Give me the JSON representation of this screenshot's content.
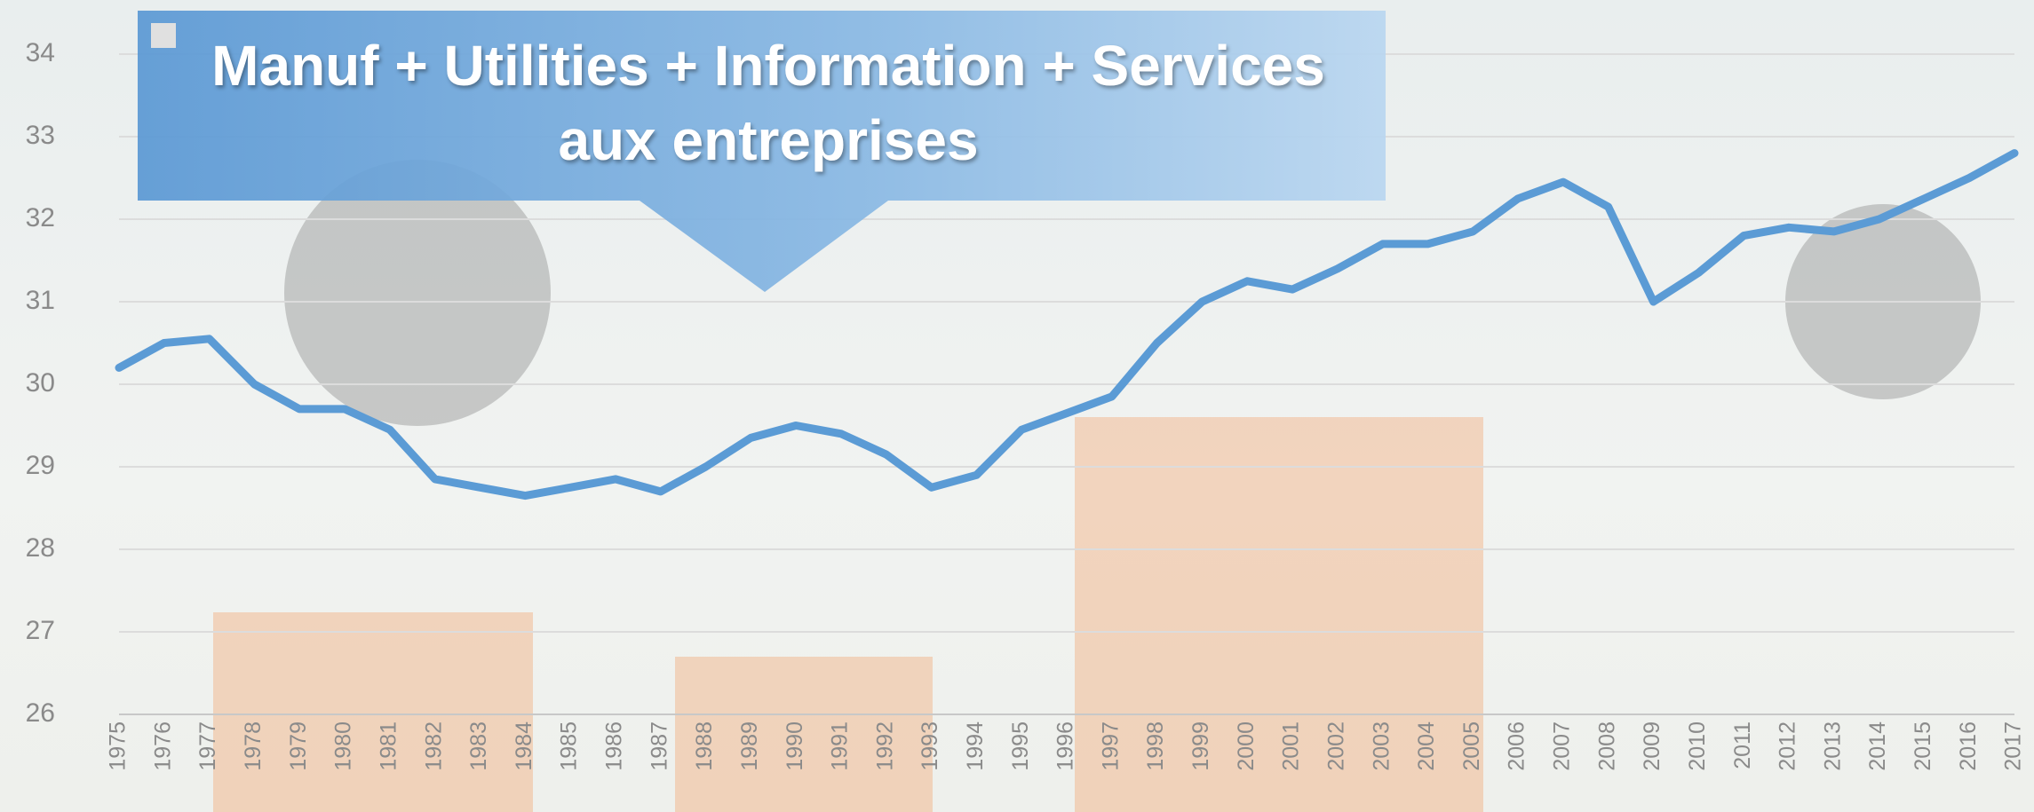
{
  "chart_data": {
    "type": "line",
    "x": [
      "1975",
      "1976",
      "1977",
      "1978",
      "1979",
      "1980",
      "1981",
      "1982",
      "1983",
      "1984",
      "1985",
      "1986",
      "1987",
      "1988",
      "1989",
      "1990",
      "1991",
      "1992",
      "1993",
      "1994",
      "1995",
      "1996",
      "1997",
      "1998",
      "1999",
      "2000",
      "2001",
      "2002",
      "2003",
      "2004",
      "2005",
      "2006",
      "2007",
      "2008",
      "2009",
      "2010",
      "2011",
      "2012",
      "2013",
      "2014",
      "2015",
      "2016",
      "2017"
    ],
    "series": [
      {
        "name": "Manuf + Utilities + Information + Services aux entreprises",
        "color": "#5b9bd5",
        "values": [
          30.2,
          30.5,
          30.55,
          30.0,
          29.7,
          29.7,
          29.45,
          28.85,
          28.75,
          28.65,
          28.75,
          28.85,
          28.7,
          29.0,
          29.35,
          29.5,
          29.4,
          29.15,
          28.75,
          28.9,
          29.45,
          29.65,
          29.85,
          30.5,
          31.0,
          31.25,
          31.15,
          31.4,
          31.7,
          31.7,
          31.85,
          32.25,
          32.45,
          32.15,
          31.0,
          31.35,
          31.8,
          31.9,
          31.85,
          32.0,
          32.25,
          32.5,
          32.8
        ]
      }
    ],
    "ylim": [
      26,
      34
    ],
    "yticks": [
      26,
      27,
      28,
      29,
      30,
      31,
      32,
      33,
      34
    ],
    "grid": true
  }
}
